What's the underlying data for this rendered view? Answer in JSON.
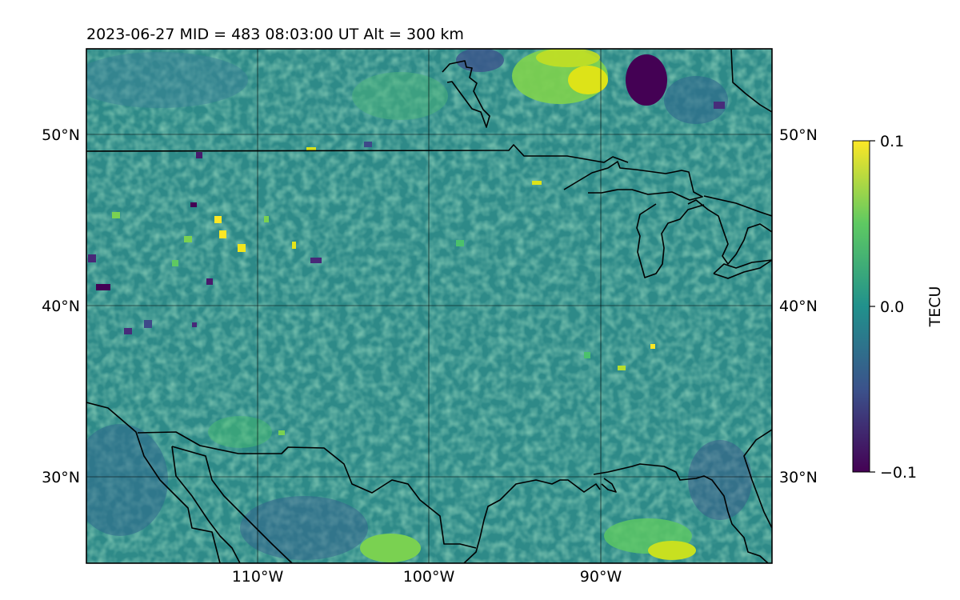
{
  "map": {
    "title": "2023-06-27  MID = 483    08:03:00  UT  Alt = 300 km",
    "lon_range": [
      -120,
      -80
    ],
    "lat_range": [
      25,
      55
    ],
    "lat_ticks": [
      {
        "value": 50,
        "label": "50°N"
      },
      {
        "value": 40,
        "label": "40°N"
      },
      {
        "value": 30,
        "label": "30°N"
      }
    ],
    "lon_ticks": [
      {
        "value": -110,
        "label": "110°W"
      },
      {
        "value": -100,
        "label": "100°W"
      },
      {
        "value": -90,
        "label": "90°W"
      }
    ],
    "grid": true,
    "colormap": "viridis",
    "base_color": "#2f8f8a",
    "coastline_color": "#000000"
  },
  "colorbar": {
    "label": "TECU",
    "min": -0.1,
    "max": 0.1,
    "ticks": [
      {
        "value": 0.1,
        "label": "0.1"
      },
      {
        "value": 0.0,
        "label": "0.0"
      },
      {
        "value": -0.1,
        "label": "−0.1"
      }
    ],
    "colors": [
      "#440154",
      "#3b528b",
      "#21918c",
      "#5ec962",
      "#fde725"
    ]
  }
}
